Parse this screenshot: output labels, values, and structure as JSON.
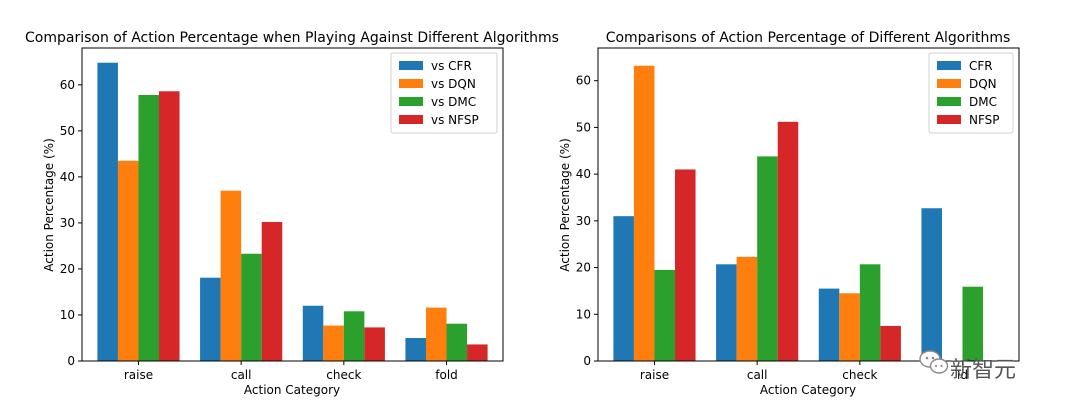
{
  "chart_data": [
    {
      "type": "bar",
      "title": "Comparison of Action Percentage when Playing Against Different Algorithms",
      "xlabel": "Action Category",
      "ylabel": "Action Percentage (%)",
      "categories": [
        "raise",
        "call",
        "check",
        "fold"
      ],
      "ylim": [
        0,
        68
      ],
      "yticks": [
        0,
        10,
        20,
        30,
        40,
        50,
        60
      ],
      "legend_position": "top-right",
      "grid": false,
      "series": [
        {
          "name": "vs CFR",
          "color": "#1f77b4",
          "values": [
            64.8,
            18.1,
            12.0,
            5.0
          ]
        },
        {
          "name": "vs DQN",
          "color": "#ff7f0e",
          "values": [
            43.5,
            37.0,
            7.7,
            11.6
          ]
        },
        {
          "name": "vs DMC",
          "color": "#2ca02c",
          "values": [
            57.8,
            23.3,
            10.8,
            8.1
          ]
        },
        {
          "name": "vs NFSP",
          "color": "#d62728",
          "values": [
            58.6,
            30.2,
            7.3,
            3.6
          ]
        }
      ]
    },
    {
      "type": "bar",
      "title": "Comparisons of Action Percentage of Different Algorithms",
      "xlabel": "Action Category",
      "ylabel": "Action Percentage (%)",
      "categories": [
        "raise",
        "call",
        "check",
        "ld"
      ],
      "ylim": [
        0,
        67
      ],
      "yticks": [
        0,
        10,
        20,
        30,
        40,
        50,
        60
      ],
      "legend_position": "top-right",
      "grid": false,
      "series": [
        {
          "name": "CFR",
          "color": "#1f77b4",
          "values": [
            31.0,
            20.7,
            15.5,
            32.7
          ]
        },
        {
          "name": "DQN",
          "color": "#ff7f0e",
          "values": [
            63.2,
            22.3,
            14.5,
            0
          ]
        },
        {
          "name": "DMC",
          "color": "#2ca02c",
          "values": [
            19.5,
            43.8,
            20.7,
            15.9
          ]
        },
        {
          "name": "NFSP",
          "color": "#d62728",
          "values": [
            41.0,
            51.2,
            7.5,
            0
          ]
        }
      ]
    }
  ],
  "watermark": {
    "icon": "wechat-icon",
    "text": "新智元"
  }
}
